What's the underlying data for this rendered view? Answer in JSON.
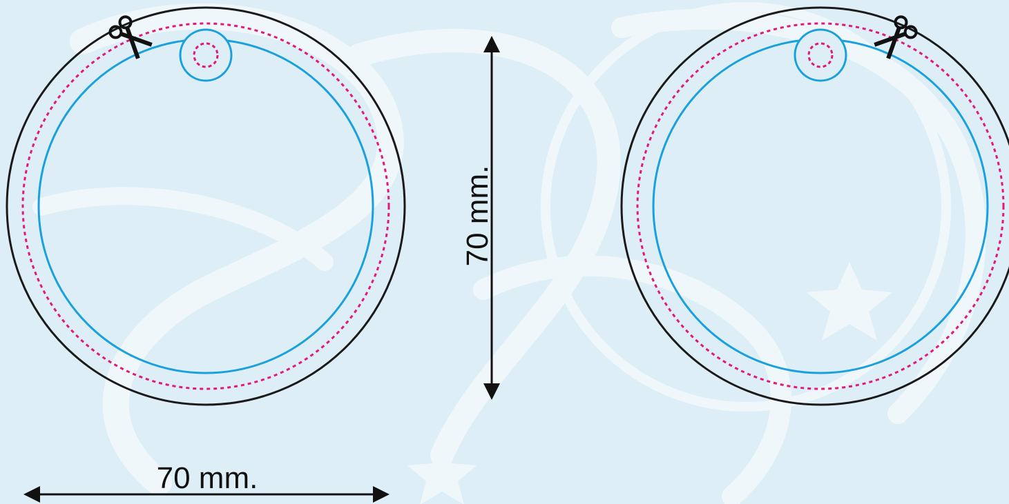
{
  "dimensions": {
    "width_label": "70 mm.",
    "height_label": "70 mm."
  },
  "colors": {
    "background": "#ddeef6",
    "watermark": "#ffffff",
    "outer_ring": "#1a1a1a",
    "cut_line": "#e2187a",
    "safe_line": "#1aa0dc",
    "arrow": "#111111"
  },
  "icons": {
    "cut_marker": "scissors-icon"
  }
}
